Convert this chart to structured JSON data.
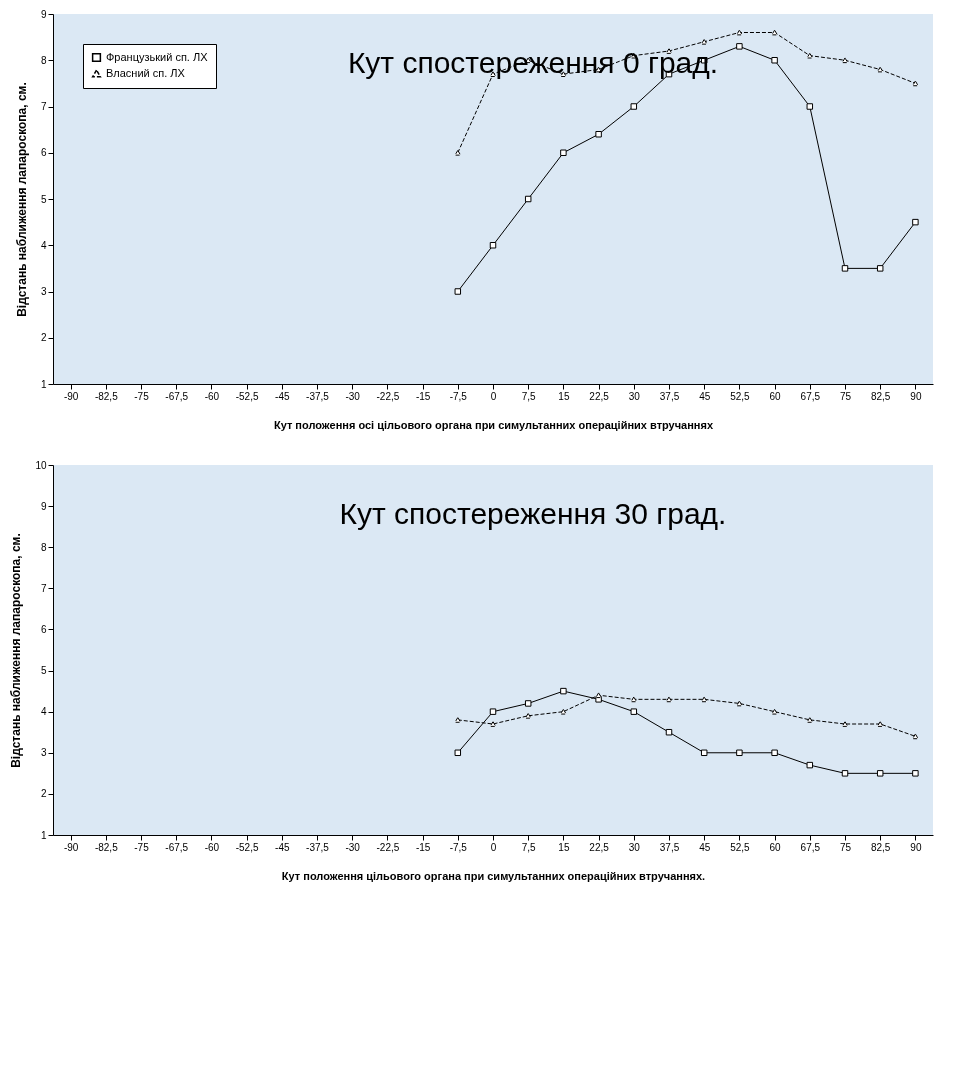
{
  "chart_data": [
    {
      "type": "line",
      "title": "Кут спостереження 0 град.",
      "xlabel": "Кут положення осі цільового органа при симультанних операційних втручаннях",
      "ylabel": "Відстань наближення лапароскопа, см.",
      "categories": [
        "-90",
        "-82,5",
        "-75",
        "-67,5",
        "-60",
        "-52,5",
        "-45",
        "-37,5",
        "-30",
        "-22,5",
        "-15",
        "-7,5",
        "0",
        "7,5",
        "15",
        "22,5",
        "30",
        "37,5",
        "45",
        "52,5",
        "60",
        "67,5",
        "75",
        "82,5",
        "90"
      ],
      "series": [
        {
          "name": "Французький сп. ЛХ",
          "color": "#000000",
          "marker": "square",
          "line_style": "solid",
          "values": [
            null,
            null,
            null,
            null,
            null,
            null,
            null,
            null,
            null,
            null,
            null,
            3,
            4,
            5,
            6,
            6.4,
            7,
            7.7,
            8,
            8.3,
            8,
            7,
            3.5,
            3.5,
            4.5
          ]
        },
        {
          "name": "Власний сп. ЛХ",
          "color": "#000000",
          "marker": "triangle",
          "line_style": "dashed",
          "values": [
            null,
            null,
            null,
            null,
            null,
            null,
            null,
            null,
            null,
            null,
            null,
            6,
            7.7,
            8,
            7.7,
            7.8,
            8.1,
            8.2,
            8.4,
            8.6,
            8.6,
            8.1,
            8,
            7.8,
            7.5
          ]
        }
      ],
      "ylim": [
        1,
        9
      ],
      "yticks": [
        1,
        2,
        3,
        4,
        5,
        6,
        7,
        8,
        9
      ],
      "grid": false,
      "legend": "top left"
    },
    {
      "type": "line",
      "title": "Кут спостереження 30 град.",
      "xlabel": "Кут положення цільового органа при симультанних операційних втручаннях.",
      "ylabel": "Відстань наближення лапароскопа, см.",
      "categories": [
        "-90",
        "-82,5",
        "-75",
        "-67,5",
        "-60",
        "-52,5",
        "-45",
        "-37,5",
        "-30",
        "-22,5",
        "-15",
        "-7,5",
        "0",
        "7,5",
        "15",
        "22,5",
        "30",
        "37,5",
        "45",
        "52,5",
        "60",
        "67,5",
        "75",
        "82,5",
        "90"
      ],
      "series": [
        {
          "name": "Французький сп. ЛХ",
          "color": "#000000",
          "marker": "square",
          "line_style": "solid",
          "values": [
            null,
            null,
            null,
            null,
            null,
            null,
            null,
            null,
            null,
            null,
            null,
            3,
            4,
            4.2,
            4.5,
            4.3,
            4,
            3.5,
            3,
            3,
            3,
            2.7,
            2.5,
            2.5,
            2.5
          ]
        },
        {
          "name": "Власний сп. ЛХ",
          "color": "#000000",
          "marker": "triangle",
          "line_style": "dashed",
          "values": [
            null,
            null,
            null,
            null,
            null,
            null,
            null,
            null,
            null,
            null,
            null,
            3.8,
            3.7,
            3.9,
            4,
            4.4,
            4.3,
            4.3,
            4.3,
            4.2,
            4,
            3.8,
            3.7,
            3.7,
            3.4
          ]
        }
      ],
      "ylim": [
        1,
        10
      ],
      "yticks": [
        1,
        2,
        3,
        4,
        5,
        6,
        7,
        8,
        9,
        10
      ],
      "grid": false,
      "legend": "top left"
    }
  ]
}
